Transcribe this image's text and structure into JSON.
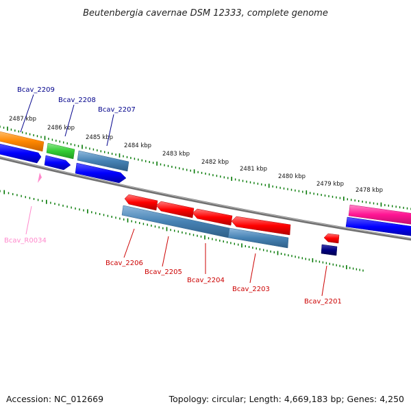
{
  "title": "Beutenbergia cavernae DSM 12333, complete genome",
  "footer": {
    "accession": "Accession: NC_012669",
    "summary": "Topology: circular; Length: 4,669,183 bp; Genes: 4,250"
  },
  "scale_labels": [
    "2487 kbp",
    "2486 kbp",
    "2485 kbp",
    "2484 kbp",
    "2483 kbp",
    "2482 kbp",
    "2481 kbp",
    "2480 kbp",
    "2479 kbp",
    "2478 kbp"
  ],
  "gene_labels": {
    "bcav_2209": "Bcav_2209",
    "bcav_2208": "Bcav_2208",
    "bcav_2207": "Bcav_2207",
    "bcav_r0034": "Bcav_R0034",
    "bcav_2206": "Bcav_2206",
    "bcav_2205": "Bcav_2205",
    "bcav_2204": "Bcav_2204",
    "bcav_2203": "Bcav_2203",
    "bcav_2201": "Bcav_2201"
  },
  "colors": {
    "forward_strand_label": "#00008b",
    "reverse_strand_label": "#cc0000",
    "rna_label": "#ff88cc",
    "backbone": "#808080",
    "tick": "#007700",
    "gene_orange": "#ff8800",
    "gene_green": "#33cc33",
    "gene_steelblue": "#4682b4",
    "gene_blue": "#0000ff",
    "gene_red": "#ff0000",
    "gene_navy": "#000080",
    "gene_pink": "#ff1493"
  }
}
